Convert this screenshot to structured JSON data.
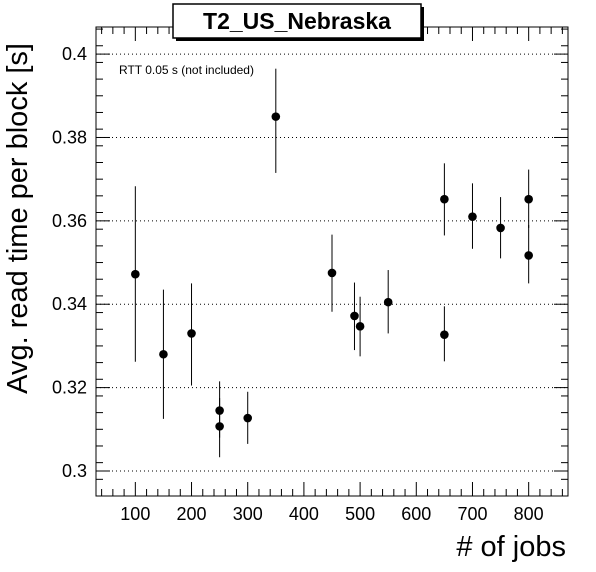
{
  "chart_data": {
    "type": "scatter",
    "title": "T2_US_Nebraska",
    "xlabel": "# of jobs",
    "ylabel": "Avg. read time per block [s]",
    "annotation": "RTT 0.05 s (not included)",
    "xlim": [
      30,
      870
    ],
    "ylim": [
      0.294,
      0.4065
    ],
    "x_ticks": [
      100,
      200,
      300,
      400,
      500,
      600,
      700,
      800
    ],
    "x_tick_labels": [
      "100",
      "200",
      "300",
      "400",
      "500",
      "600",
      "700",
      "800"
    ],
    "y_ticks": [
      0.3,
      0.32,
      0.34,
      0.36,
      0.38,
      0.4
    ],
    "y_tick_labels": [
      "0.3",
      "0.32",
      "0.34",
      "0.36",
      "0.38",
      "0.4"
    ],
    "grid": "horizontal dotted",
    "marker_color": "#000000",
    "points": [
      {
        "x": 100,
        "y": 0.3472,
        "lo": 0.3262,
        "hi": 0.3683
      },
      {
        "x": 150,
        "y": 0.328,
        "lo": 0.3125,
        "hi": 0.3435
      },
      {
        "x": 200,
        "y": 0.333,
        "lo": 0.3205,
        "hi": 0.345
      },
      {
        "x": 250,
        "y": 0.3145,
        "lo": 0.308,
        "hi": 0.3215
      },
      {
        "x": 250,
        "y": 0.3107,
        "lo": 0.3033,
        "hi": 0.3175
      },
      {
        "x": 300,
        "y": 0.3127,
        "lo": 0.3065,
        "hi": 0.319
      },
      {
        "x": 350,
        "y": 0.385,
        "lo": 0.3715,
        "hi": 0.3965
      },
      {
        "x": 450,
        "y": 0.3475,
        "lo": 0.3382,
        "hi": 0.3567
      },
      {
        "x": 490,
        "y": 0.3372,
        "lo": 0.329,
        "hi": 0.3452
      },
      {
        "x": 500,
        "y": 0.3347,
        "lo": 0.3275,
        "hi": 0.3418
      },
      {
        "x": 550,
        "y": 0.3405,
        "lo": 0.333,
        "hi": 0.3482
      },
      {
        "x": 650,
        "y": 0.3652,
        "lo": 0.3565,
        "hi": 0.3738
      },
      {
        "x": 650,
        "y": 0.3327,
        "lo": 0.3263,
        "hi": 0.3395
      },
      {
        "x": 700,
        "y": 0.361,
        "lo": 0.3533,
        "hi": 0.369
      },
      {
        "x": 750,
        "y": 0.3583,
        "lo": 0.351,
        "hi": 0.3657
      },
      {
        "x": 800,
        "y": 0.3652,
        "lo": 0.3583,
        "hi": 0.3723
      },
      {
        "x": 800,
        "y": 0.3517,
        "lo": 0.345,
        "hi": 0.359
      }
    ]
  }
}
